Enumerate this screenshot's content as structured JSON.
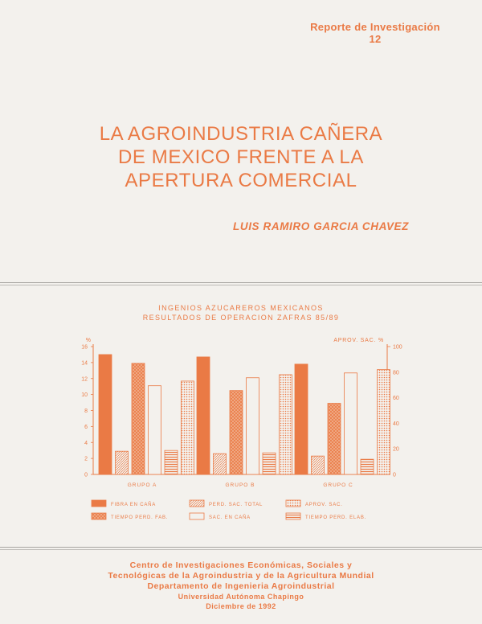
{
  "report": {
    "line1": "Reporte de Investigación",
    "number": "12"
  },
  "title": {
    "line1": "LA AGROINDUSTRIA CAÑERA",
    "line2": "DE MEXICO FRENTE A LA",
    "line3": "APERTURA COMERCIAL"
  },
  "author": "LUIS RAMIRO GARCIA CHAVEZ",
  "footer": {
    "line1": "Centro de Investigaciones Económicas, Sociales y",
    "line2": "Tecnológicas de la Agroindustria y de la Agricultura Mundial",
    "line3": "Departamento de Ingenieria Agroindustrial",
    "line4": "Universidad Autónoma Chapingo",
    "line5": "Diciembre de 1992"
  },
  "colors": {
    "accent": "#ea7a45",
    "background": "#f3f1ed"
  },
  "chart_data": {
    "type": "bar",
    "title": "INGENIOS AZUCAREROS MEXICANOS",
    "subtitle": "RESULTADOS DE OPERACION ZAFRAS 85/89",
    "ylabel_left": "%",
    "ylabel_right": "APROV. SAC. %",
    "ylim_left": [
      0,
      16
    ],
    "ylim_right": [
      0,
      100
    ],
    "yticks_left": [
      "0",
      "2",
      "4",
      "6",
      "8",
      "10",
      "12",
      "14",
      "16"
    ],
    "yticks_right": [
      "0",
      "20",
      "40",
      "60",
      "80",
      "100"
    ],
    "categories": [
      "GRUPO A",
      "GRUPO B",
      "GRUPO C"
    ],
    "legend_placement": "bottom",
    "series": [
      {
        "name": "FIBRA EN CAÑA",
        "axis": "left",
        "pattern": "solid",
        "values": [
          15.0,
          14.7,
          13.8
        ]
      },
      {
        "name": "PERD. SAC. TOTAL",
        "axis": "left",
        "pattern": "diag-fine",
        "values": [
          2.9,
          2.6,
          2.3
        ]
      },
      {
        "name": "TIEMPO PERD. FAB.",
        "axis": "left",
        "pattern": "cross",
        "values": [
          13.9,
          10.5,
          8.9
        ]
      },
      {
        "name": "SAC. EN CAÑA",
        "axis": "left",
        "pattern": "blank",
        "values": [
          11.1,
          12.1,
          12.7
        ]
      },
      {
        "name": "TIEMPO PERD. ELAB.",
        "axis": "left",
        "pattern": "horizontal",
        "values": [
          3.0,
          2.7,
          1.9
        ]
      },
      {
        "name": "APROV. SAC.",
        "axis": "right",
        "pattern": "dotted",
        "values": [
          73,
          78,
          82
        ]
      }
    ]
  }
}
